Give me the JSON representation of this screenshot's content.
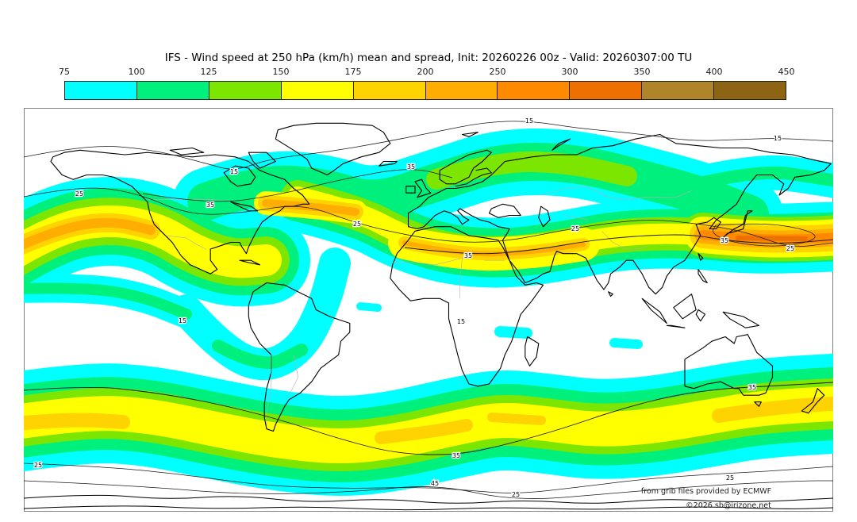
{
  "header": {
    "title": "IFS - Wind speed at 250 hPa (km/h) mean and spread, Init: 20260226 00z - Valid: 20260307:00 TU"
  },
  "colorbar": {
    "tick_labels": [
      "75",
      "100",
      "125",
      "150",
      "175",
      "200",
      "250",
      "300",
      "350",
      "400",
      "450"
    ],
    "segment_colors": [
      "#00FFFF",
      "#00F07D",
      "#7DE600",
      "#FFFF00",
      "#FFD300",
      "#FFAD00",
      "#FF8A00",
      "#EE7000",
      "#B08428",
      "#8C6414"
    ]
  },
  "map": {
    "source_note": "from grib files provided by ECMWF",
    "copyright": "©2026 sb@irizone.net",
    "contour_labels": {
      "l15": "15",
      "l25": "25",
      "l35": "35",
      "l45": "45"
    },
    "land_outline_color": "#000000",
    "spread_contour_color": "#1a1a1a",
    "border_color": "#808080"
  },
  "chart_data": {
    "type": "heatmap",
    "title": "IFS - Wind speed at 250 hPa (km/h) mean and spread, Init: 20260226 00z - Valid: 20260307:00 TU",
    "model": "IFS",
    "variable": "Wind speed at 250 hPa",
    "units": "km/h",
    "statistic": "ensemble mean (color shading) and ensemble spread (thin labeled contours)",
    "init": "20260226 00z",
    "valid": "20260307:00 TU",
    "projection": "global equirectangular world map (90N-90S, 180W-180E)",
    "colorbar": {
      "levels": [
        75,
        100,
        125,
        150,
        175,
        200,
        250,
        300,
        350,
        400,
        450
      ],
      "colors": [
        "#00FFFF",
        "#00F07D",
        "#7DE600",
        "#FFFF00",
        "#FFD300",
        "#FFAD00",
        "#FF8A00",
        "#EE7000",
        "#B08428",
        "#8C6414"
      ],
      "position": "top"
    },
    "spread_contour_values": [
      15,
      25,
      35,
      45
    ],
    "notable_features": [
      "North Pacific jet streak ~200-250 km/h west of North America",
      "Jet streak ~200-250 km/h over eastern North America / west Atlantic",
      "Subtropical jet ~150-250 km/h across Mediterranean, North Africa and Middle East",
      "Strongest jet ~250-320 km/h over Japan extending across the Pacific",
      "Southern-hemisphere circumpolar jet band ~100-220 km/h near 40-55S with cores over the S Pacific, S Indian Ocean and south of Australia/New Zealand"
    ],
    "attribution": "from grib files provided by ECMWF",
    "copyright": "©2026 sb@irizone.net"
  }
}
